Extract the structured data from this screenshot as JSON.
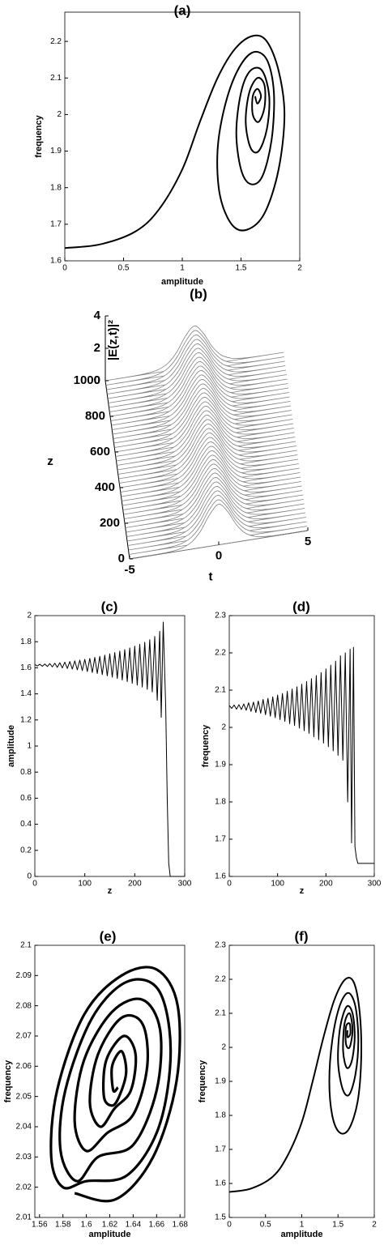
{
  "chart_data": [
    {
      "type": "line",
      "title": "(a)",
      "xlabel": "amplitude",
      "ylabel": "frequency",
      "xlim": [
        0,
        2
      ],
      "ylim": [
        1.6,
        2.28
      ],
      "xticks": [
        0,
        0.5,
        1,
        1.5,
        2
      ],
      "yticks": [
        1.6,
        1.7,
        1.8,
        1.9,
        2,
        2.1,
        2.2
      ],
      "color": "#000000",
      "x": [
        0,
        0.3,
        0.6,
        0.8,
        1.0,
        1.15,
        1.3,
        1.45,
        1.6,
        1.72,
        1.82,
        1.87,
        1.82,
        1.7,
        1.55,
        1.42,
        1.32,
        1.3,
        1.36,
        1.47,
        1.6,
        1.72,
        1.78,
        1.76,
        1.68,
        1.58,
        1.5,
        1.46,
        1.5,
        1.58,
        1.68,
        1.74,
        1.72,
        1.65,
        1.58,
        1.54,
        1.57,
        1.64,
        1.7,
        1.7,
        1.65,
        1.6,
        1.6,
        1.64,
        1.67,
        1.64,
        1.62
      ],
      "y": [
        1.635,
        1.645,
        1.68,
        1.74,
        1.85,
        1.98,
        2.1,
        2.18,
        2.215,
        2.2,
        2.12,
        2.0,
        1.85,
        1.73,
        1.685,
        1.7,
        1.78,
        1.9,
        2.02,
        2.12,
        2.17,
        2.15,
        2.06,
        1.93,
        1.83,
        1.81,
        1.85,
        1.95,
        2.06,
        2.12,
        2.12,
        2.05,
        1.96,
        1.9,
        1.91,
        1.98,
        2.06,
        2.1,
        2.08,
        2.02,
        1.98,
        2.0,
        2.05,
        2.07,
        2.05,
        2.03,
        2.05
      ]
    },
    {
      "type": "waterfall",
      "title": "(b)",
      "xlabel": "t",
      "ylabel": "z",
      "zlabel": "|E(z,t)|²",
      "xlim": [
        -5,
        5
      ],
      "ylim": [
        0,
        1000
      ],
      "zlim": [
        0,
        4
      ],
      "xticks": [
        -5,
        0,
        5
      ],
      "yticks": [
        0,
        200,
        400,
        600,
        800,
        1000
      ],
      "zticks": [
        0,
        2,
        4
      ],
      "color": "#808080",
      "t": [
        -5,
        -4.5,
        -4,
        -3.5,
        -3,
        -2.5,
        -2,
        -1.5,
        -1,
        -0.5,
        0,
        0.5,
        1,
        1.5,
        2,
        2.5,
        3,
        3.5,
        4,
        4.5,
        5
      ],
      "intensity": [
        0,
        0.001,
        0.003,
        0.009,
        0.025,
        0.066,
        0.177,
        0.45,
        1.05,
        1.966,
        2.5,
        1.966,
        1.05,
        0.45,
        0.177,
        0.066,
        0.025,
        0.009,
        0.003,
        0.001,
        0
      ],
      "z": [
        0,
        25,
        50,
        75,
        100,
        125,
        150,
        175,
        200,
        225,
        250,
        275,
        300,
        325,
        350,
        375,
        400,
        425,
        450,
        475,
        500,
        525,
        550,
        575,
        600,
        625,
        650,
        675,
        700,
        725,
        750,
        775,
        800,
        825,
        850,
        875,
        900,
        925,
        950,
        975,
        1000
      ]
    },
    {
      "type": "line",
      "title": "(c)",
      "xlabel": "z",
      "ylabel": "amplitude",
      "xlim": [
        0,
        300
      ],
      "ylim": [
        0,
        2
      ],
      "xticks": [
        0,
        100,
        200,
        300
      ],
      "yticks": [
        0,
        0.2,
        0.4,
        0.6,
        0.8,
        1,
        1.2,
        1.4,
        1.6,
        1.8,
        2
      ],
      "color": "#000000",
      "x": [
        0,
        5,
        10,
        15,
        20,
        25,
        30,
        35,
        40,
        45,
        50,
        55,
        60,
        65,
        70,
        75,
        80,
        85,
        90,
        95,
        100,
        105,
        110,
        115,
        120,
        125,
        130,
        135,
        140,
        145,
        150,
        155,
        160,
        165,
        170,
        175,
        180,
        185,
        190,
        195,
        200,
        205,
        210,
        215,
        220,
        225,
        230,
        235,
        240,
        245,
        250,
        253,
        257,
        262,
        265,
        268,
        271,
        300
      ],
      "y": [
        1.625,
        1.614,
        1.627,
        1.612,
        1.629,
        1.61,
        1.632,
        1.607,
        1.635,
        1.603,
        1.639,
        1.599,
        1.643,
        1.595,
        1.648,
        1.59,
        1.653,
        1.584,
        1.659,
        1.578,
        1.665,
        1.571,
        1.672,
        1.564,
        1.68,
        1.556,
        1.688,
        1.548,
        1.697,
        1.538,
        1.707,
        1.528,
        1.717,
        1.518,
        1.728,
        1.506,
        1.74,
        1.494,
        1.752,
        1.481,
        1.766,
        1.467,
        1.78,
        1.452,
        1.796,
        1.435,
        1.815,
        1.415,
        1.84,
        1.35,
        1.88,
        1.22,
        1.95,
        1.3,
        0.6,
        0.1,
        0,
        0
      ]
    },
    {
      "type": "line",
      "title": "(d)",
      "xlabel": "z",
      "ylabel": "frequency",
      "xlim": [
        0,
        300
      ],
      "ylim": [
        1.6,
        2.3
      ],
      "xticks": [
        0,
        100,
        200,
        300
      ],
      "yticks": [
        1.6,
        1.7,
        1.8,
        1.9,
        2,
        2.1,
        2.2,
        2.3
      ],
      "color": "#000000",
      "x": [
        0,
        5,
        10,
        15,
        20,
        25,
        30,
        35,
        40,
        45,
        50,
        55,
        60,
        65,
        70,
        75,
        80,
        85,
        90,
        95,
        100,
        105,
        110,
        115,
        120,
        125,
        130,
        135,
        140,
        145,
        150,
        155,
        160,
        165,
        170,
        175,
        180,
        185,
        190,
        195,
        200,
        205,
        210,
        215,
        220,
        225,
        230,
        235,
        240,
        245,
        250,
        253,
        257,
        260,
        263,
        266,
        300
      ],
      "y": [
        2.059,
        2.051,
        2.06,
        2.049,
        2.061,
        2.048,
        2.063,
        2.046,
        2.066,
        2.043,
        2.068,
        2.04,
        2.071,
        2.038,
        2.075,
        2.034,
        2.078,
        2.03,
        2.082,
        2.026,
        2.087,
        2.021,
        2.091,
        2.016,
        2.097,
        2.01,
        2.103,
        2.005,
        2.109,
        1.998,
        2.116,
        1.991,
        2.123,
        1.984,
        2.131,
        1.975,
        2.139,
        1.967,
        2.147,
        1.958,
        2.157,
        1.948,
        2.167,
        1.937,
        2.178,
        1.925,
        2.192,
        1.912,
        2.2,
        1.8,
        2.21,
        1.69,
        2.215,
        1.68,
        1.65,
        1.635,
        1.635
      ]
    },
    {
      "type": "line",
      "title": "(e)",
      "xlabel": "amplitude",
      "ylabel": "frequency",
      "xlim": [
        1.556,
        1.684
      ],
      "ylim": [
        2.01,
        2.1
      ],
      "xticks": [
        1.56,
        1.58,
        1.6,
        1.62,
        1.64,
        1.66,
        1.68
      ],
      "yticks": [
        2.01,
        2.02,
        2.03,
        2.04,
        2.05,
        2.06,
        2.07,
        2.08,
        2.09,
        2.1
      ],
      "color": "#000000",
      "x": [
        1.59,
        1.625,
        1.657,
        1.677,
        1.678,
        1.66,
        1.63,
        1.598,
        1.575,
        1.57,
        1.58,
        1.6,
        1.635,
        1.662,
        1.672,
        1.662,
        1.635,
        1.605,
        1.582,
        1.578,
        1.592,
        1.61,
        1.64,
        1.66,
        1.663,
        1.648,
        1.622,
        1.598,
        1.59,
        1.6,
        1.618,
        1.64,
        1.652,
        1.648,
        1.63,
        1.61,
        1.603,
        1.612,
        1.624,
        1.638,
        1.642,
        1.632,
        1.617,
        1.615,
        1.622,
        1.628,
        1.634,
        1.63,
        1.622,
        1.623,
        1.627
      ],
      "y": [
        2.018,
        2.016,
        2.03,
        2.055,
        2.08,
        2.092,
        2.09,
        2.077,
        2.052,
        2.03,
        2.02,
        2.022,
        2.024,
        2.04,
        2.065,
        2.085,
        2.088,
        2.076,
        2.052,
        2.032,
        2.022,
        2.03,
        2.034,
        2.052,
        2.072,
        2.082,
        2.078,
        2.062,
        2.042,
        2.032,
        2.038,
        2.044,
        2.06,
        2.074,
        2.076,
        2.064,
        2.048,
        2.04,
        2.046,
        2.052,
        2.064,
        2.07,
        2.062,
        2.05,
        2.047,
        2.05,
        2.058,
        2.065,
        2.06,
        2.052,
        2.053
      ]
    },
    {
      "type": "line",
      "title": "(f)",
      "xlabel": "amplitude",
      "ylabel": "frequency",
      "xlim": [
        0,
        2
      ],
      "ylim": [
        1.5,
        2.3
      ],
      "xticks": [
        0,
        0.5,
        1,
        1.5,
        2
      ],
      "yticks": [
        1.5,
        1.6,
        1.7,
        1.8,
        1.9,
        2,
        2.1,
        2.2,
        2.3
      ],
      "color": "#000000",
      "x": [
        0,
        0.3,
        0.6,
        0.8,
        1.0,
        1.15,
        1.3,
        1.45,
        1.6,
        1.72,
        1.8,
        1.82,
        1.77,
        1.65,
        1.52,
        1.42,
        1.38,
        1.42,
        1.52,
        1.64,
        1.74,
        1.78,
        1.74,
        1.65,
        1.56,
        1.5,
        1.53,
        1.62,
        1.7,
        1.73,
        1.69,
        1.62,
        1.57,
        1.59,
        1.66,
        1.7,
        1.66,
        1.61,
        1.61,
        1.66,
        1.67,
        1.63,
        1.63
      ],
      "y": [
        1.575,
        1.585,
        1.62,
        1.68,
        1.78,
        1.9,
        2.03,
        2.14,
        2.2,
        2.19,
        2.1,
        1.97,
        1.84,
        1.76,
        1.75,
        1.8,
        1.9,
        2.02,
        2.12,
        2.16,
        2.12,
        2.02,
        1.92,
        1.86,
        1.88,
        1.96,
        2.06,
        2.12,
        2.1,
        2.03,
        1.96,
        1.94,
        1.99,
        2.07,
        2.1,
        2.05,
        2.0,
        2.01,
        2.06,
        2.07,
        2.04,
        2.03,
        2.05
      ]
    }
  ]
}
